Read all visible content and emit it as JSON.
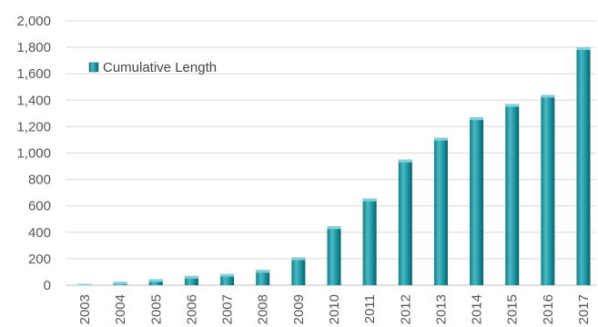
{
  "chart_data": {
    "type": "bar",
    "title": "",
    "xlabel": "",
    "ylabel": "",
    "categories": [
      "2003",
      "2004",
      "2005",
      "2006",
      "2007",
      "2008",
      "2009",
      "2010",
      "2011",
      "2012",
      "2013",
      "2014",
      "2015",
      "2016",
      "2017"
    ],
    "series": [
      {
        "name": "Cumulative Length",
        "values": [
          5,
          25,
          45,
          70,
          85,
          115,
          210,
          445,
          655,
          950,
          1115,
          1270,
          1370,
          1440,
          1800
        ]
      }
    ],
    "ylim": [
      0,
      2000
    ],
    "yticks": [
      "0",
      "200",
      "400",
      "600",
      "800",
      "1,000",
      "1,200",
      "1,400",
      "1,600",
      "1,800",
      "2,000"
    ],
    "grid": true,
    "legend_position": "top-left",
    "colors": {
      "bar_light": "#4cb8c4",
      "bar_main": "#17939f",
      "bar_dark": "#0b5f67",
      "bar_top": "#7fd0d8",
      "grid": "#d9d9d9"
    }
  }
}
